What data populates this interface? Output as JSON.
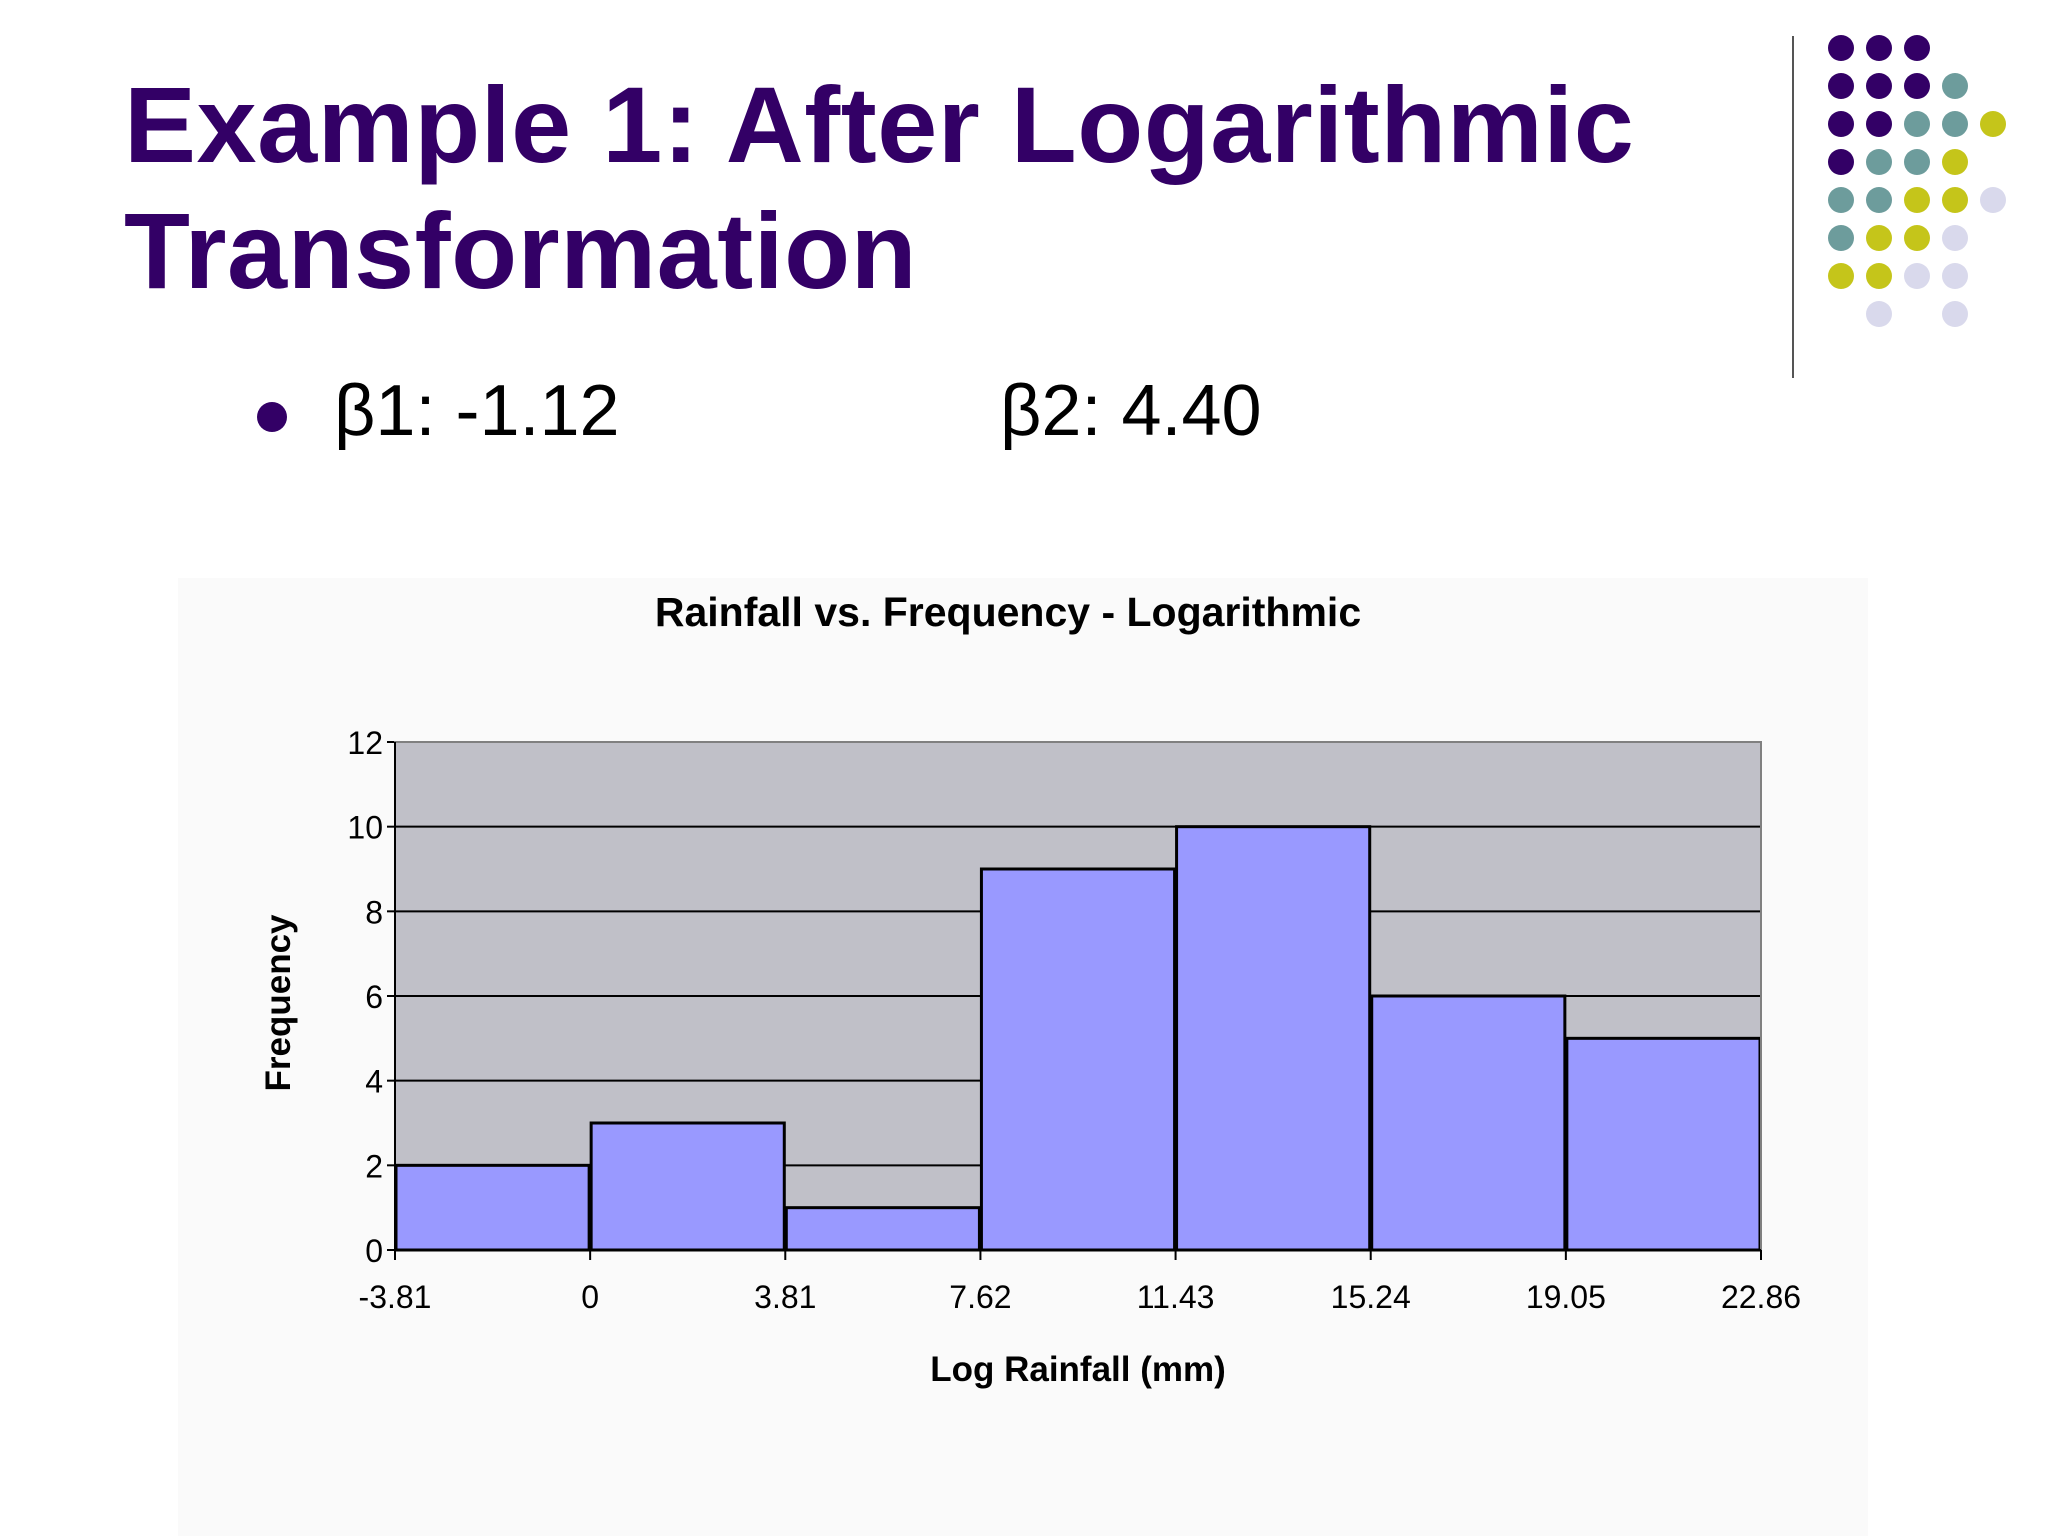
{
  "slide": {
    "title_line1": "Example 1: After Logarithmic",
    "title_line2": "Transformation",
    "bullet_beta1": "β1: -1.12",
    "bullet_beta2": "β2: 4.40"
  },
  "decoration": {
    "dot_grid": [
      [
        "purple",
        "purple",
        "purple",
        "",
        "",
        ""
      ],
      [
        "purple",
        "purple",
        "purple",
        "teal",
        "",
        ""
      ],
      [
        "purple",
        "purple",
        "teal",
        "teal",
        "olive",
        ""
      ],
      [
        "purple",
        "teal",
        "teal",
        "olive",
        "",
        ""
      ],
      [
        "teal",
        "teal",
        "olive",
        "olive",
        "lavender",
        ""
      ],
      [
        "teal",
        "olive",
        "olive",
        "lavender",
        "",
        ""
      ],
      [
        "olive",
        "olive",
        "lavender",
        "lavender",
        "",
        ""
      ],
      [
        "",
        "lavender",
        "",
        "lavender",
        "",
        ""
      ]
    ],
    "colors": {
      "purple": "#330066",
      "teal": "#6d9c9c",
      "olive": "#c5c51a",
      "lavender": "#d9d9ec",
      "title": "#330066"
    }
  },
  "chart_data": {
    "type": "bar",
    "title": "Rainfall vs. Frequency - Logarithmic",
    "xlabel": "Log Rainfall (mm)",
    "ylabel": "Frequency",
    "bin_edges": [
      "-3.81",
      "0",
      "3.81",
      "7.62",
      "11.43",
      "15.24",
      "19.05",
      "22.86"
    ],
    "values": [
      2,
      3,
      1,
      9,
      10,
      6,
      5
    ],
    "ylim": [
      0,
      12
    ],
    "yticks": [
      "0",
      "2",
      "4",
      "6",
      "8",
      "10",
      "12"
    ],
    "grid": true,
    "legend": "none",
    "colors": {
      "plot_background": "#c0c0c8",
      "bar_fill": "#9999ff",
      "bar_stroke": "#000000"
    }
  }
}
